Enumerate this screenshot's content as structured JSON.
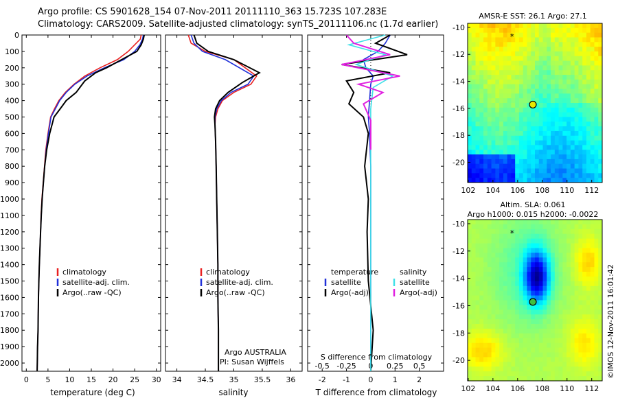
{
  "header": {
    "title_line1": "Argo profile: CS 5901628_154 07-Nov-2011 20111110_363 15.723S 107.283E",
    "title_line2": "Climatology: CARS2009. Satellite-adjusted climatology: synTS_20111106.nc (1.7d earlier)"
  },
  "colors": {
    "climatology": "#e82020",
    "satellite": "#2030d8",
    "argo": "#000000",
    "salinity_satellite": "#40e0e8",
    "salinity_argo": "#e020e0"
  },
  "chart_data": [
    {
      "id": "temperature",
      "type": "line",
      "xlabel": "temperature (deg C)",
      "xlim": [
        -1,
        31
      ],
      "xticks": [
        0,
        5,
        10,
        15,
        20,
        25,
        30
      ],
      "ylim": [
        2050,
        0
      ],
      "yticks": [
        0,
        100,
        200,
        300,
        400,
        500,
        600,
        700,
        800,
        900,
        1000,
        1100,
        1200,
        1300,
        1400,
        1500,
        1600,
        1700,
        1800,
        1900,
        2000
      ],
      "legend": [
        "climatology",
        "satellite-adj. clim.",
        "Argo(..raw -QC)"
      ],
      "series": [
        {
          "name": "climatology",
          "x": [
            26.5,
            26.3,
            25,
            23.5,
            21,
            17,
            13.5,
            11,
            9,
            7.5,
            6.5,
            5.6,
            5,
            4.5,
            4.2,
            3.9,
            3.6,
            3.4,
            3.3,
            3.15,
            3,
            2.9,
            2.8,
            2.7,
            2.6,
            2.5
          ],
          "y": [
            0,
            25,
            60,
            100,
            150,
            200,
            250,
            300,
            350,
            400,
            450,
            500,
            600,
            700,
            800,
            900,
            1000,
            1100,
            1200,
            1300,
            1400,
            1500,
            1600,
            1800,
            1900,
            2050
          ]
        },
        {
          "name": "satellite-adj. clim.",
          "x": [
            27,
            26.8,
            26.2,
            25,
            22.5,
            18,
            14,
            11.2,
            9.2,
            7.7,
            6.7,
            5.7,
            5.1,
            4.6,
            4.25,
            3.95,
            3.65,
            3.45,
            3.3,
            3.15,
            3,
            2.9,
            2.8,
            2.7,
            2.6,
            2.5
          ],
          "y": [
            0,
            25,
            60,
            100,
            150,
            200,
            250,
            300,
            350,
            400,
            450,
            500,
            600,
            700,
            800,
            900,
            1000,
            1100,
            1200,
            1300,
            1400,
            1500,
            1600,
            1800,
            1900,
            2050
          ]
        },
        {
          "name": "Argo(..raw -QC)",
          "x": [
            27.2,
            27,
            26.5,
            25.5,
            22,
            18.5,
            16,
            13.5,
            11.5,
            9.2,
            7.8,
            6.4,
            5.4,
            4.7,
            4.25,
            3.95,
            3.65,
            3.45,
            3.3,
            3.15,
            3,
            2.9,
            2.8,
            2.7,
            2.6,
            2.5
          ],
          "y": [
            0,
            25,
            60,
            100,
            150,
            200,
            230,
            280,
            350,
            400,
            450,
            500,
            600,
            700,
            800,
            900,
            1000,
            1100,
            1200,
            1300,
            1400,
            1500,
            1600,
            1800,
            1900,
            2050
          ]
        }
      ]
    },
    {
      "id": "salinity",
      "type": "line",
      "xlabel": "salinity",
      "xlim": [
        33.8,
        36.2
      ],
      "xticks": [
        34,
        34.5,
        35,
        35.5,
        36
      ],
      "ylim": [
        2050,
        0
      ],
      "legend": [
        "climatology",
        "satellite-adj. clim.",
        "Argo(..raw -QC)"
      ],
      "annotation": [
        "Argo AUSTRALIA",
        "PI: Susan Wijffels"
      ],
      "series": [
        {
          "name": "climatology",
          "x": [
            34.2,
            34.25,
            34.5,
            35.0,
            35.4,
            35.3,
            35.0,
            34.8,
            34.72,
            34.68,
            34.67,
            34.68,
            34.69,
            34.7,
            34.71,
            34.72,
            34.72,
            34.73,
            34.73
          ],
          "y": [
            0,
            50,
            100,
            150,
            250,
            300,
            350,
            400,
            450,
            500,
            550,
            650,
            800,
            1000,
            1200,
            1400,
            1600,
            1800,
            2050
          ]
        },
        {
          "name": "satellite-adj. clim.",
          "x": [
            34.25,
            34.3,
            34.45,
            34.85,
            35.35,
            35.25,
            34.95,
            34.78,
            34.7,
            34.67,
            34.67,
            34.68,
            34.69,
            34.7,
            34.71,
            34.72,
            34.72,
            34.73,
            34.73
          ],
          "y": [
            0,
            50,
            100,
            150,
            250,
            300,
            350,
            400,
            450,
            500,
            550,
            650,
            800,
            1000,
            1200,
            1400,
            1600,
            1800,
            2050
          ]
        },
        {
          "name": "Argo(..raw -QC)",
          "x": [
            34.3,
            34.35,
            34.55,
            35.0,
            35.45,
            35.15,
            34.9,
            34.75,
            34.68,
            34.66,
            34.67,
            34.68,
            34.69,
            34.7,
            34.71,
            34.72,
            34.72,
            34.73,
            34.73
          ],
          "y": [
            0,
            50,
            100,
            150,
            230,
            290,
            350,
            400,
            450,
            500,
            550,
            650,
            800,
            1000,
            1200,
            1400,
            1600,
            1800,
            2050
          ]
        }
      ]
    },
    {
      "id": "difference",
      "type": "line",
      "xlabel": "T difference from climatology",
      "xlabel_top": "S difference from climatology",
      "xlim": [
        -2.6,
        3.0
      ],
      "xticks": [
        -2,
        -1,
        0,
        1,
        2
      ],
      "sticks_labels": [
        "-0.5",
        "-0.25",
        "0",
        "0.25",
        "0.5"
      ],
      "sticks_t": [
        -2,
        -1,
        0,
        1,
        2
      ],
      "ylim": [
        2050,
        0
      ],
      "legend_temperature": [
        "temperature",
        "satellite",
        "Argo(-adj)"
      ],
      "legend_salinity": [
        "salinity",
        "satellite",
        "Argo(-adj)"
      ],
      "series": [
        {
          "name": "satellite",
          "x": [
            0.8,
            0.6,
            0.3,
            -0.3,
            -0.2,
            0.1,
            0.0,
            -0.05,
            -0.1,
            -0.05,
            0.0,
            0.0,
            0.0,
            0.0,
            0.0,
            0.0
          ],
          "y": [
            0,
            50,
            100,
            150,
            200,
            250,
            300,
            400,
            500,
            600,
            800,
            1000,
            1200,
            1500,
            1800,
            2050
          ]
        },
        {
          "name": "Argo(-adj)",
          "x": [
            0.8,
            0.2,
            1.5,
            -1.2,
            0.8,
            -1.0,
            -0.7,
            -0.9,
            -0.3,
            -0.1,
            -0.25,
            -0.1,
            -0.15,
            -0.1,
            0.1,
            0.0
          ],
          "y": [
            0,
            50,
            120,
            180,
            230,
            280,
            350,
            420,
            500,
            600,
            800,
            1000,
            1200,
            1500,
            1800,
            2050
          ]
        },
        {
          "name": "salinity satellite",
          "x": [
            0.6,
            -0.9,
            0.6,
            -0.6,
            0.9,
            0.1,
            0.0,
            0.0,
            0.0,
            0.0,
            0.0
          ],
          "y": [
            0,
            60,
            120,
            180,
            250,
            320,
            450,
            700,
            1000,
            1500,
            2050
          ]
        },
        {
          "name": "salinity Argo(-adj)",
          "x": [
            -1.0,
            -0.7,
            0.8,
            -1.2,
            1.2,
            -0.5,
            0.5,
            -0.3,
            0.0,
            0.0
          ],
          "y": [
            0,
            50,
            120,
            180,
            250,
            300,
            350,
            420,
            520,
            700
          ]
        }
      ]
    }
  ],
  "maps": {
    "sst": {
      "title": "AMSR-E SST: 26.1  Argo: 27.1",
      "xticks": [
        "102",
        "104",
        "106",
        "108",
        "110",
        "112"
      ],
      "yticks": [
        "-10",
        "-12",
        "-14",
        "-16",
        "-18",
        "-20"
      ]
    },
    "sla": {
      "title_line1": "Altim. SLA: 0.061",
      "title_line2": "Argo h1000: 0.015 h2000: -0.0022",
      "xticks": [
        "102",
        "104",
        "106",
        "108",
        "110",
        "112"
      ],
      "yticks": [
        "-10",
        "-12",
        "-14",
        "-16",
        "-18",
        "-20"
      ],
      "credit": "©IMOS 12-Nov-2011 16:01:42"
    }
  }
}
